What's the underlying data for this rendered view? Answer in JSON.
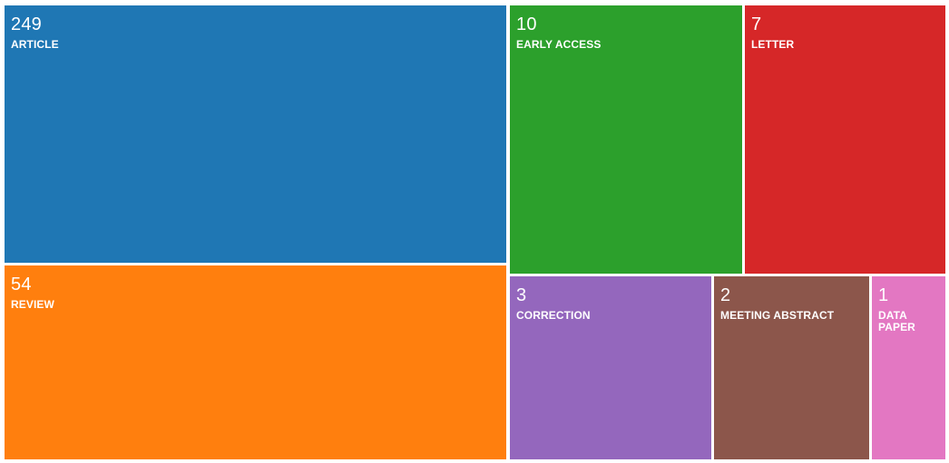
{
  "chart_data": {
    "type": "treemap",
    "items": [
      {
        "label": "ARTICLE",
        "value": 249,
        "color": "#1f77b4"
      },
      {
        "label": "REVIEW",
        "value": 54,
        "color": "#ff7f0e"
      },
      {
        "label": "EARLY ACCESS",
        "value": 10,
        "color": "#2ca02c"
      },
      {
        "label": "LETTER",
        "value": 7,
        "color": "#d62728"
      },
      {
        "label": "CORRECTION",
        "value": 3,
        "color": "#9467bd"
      },
      {
        "label": "MEETING ABSTRACT",
        "value": 2,
        "color": "#8c564b"
      },
      {
        "label": "DATA PAPER",
        "value": 1,
        "color": "#e377c2"
      }
    ]
  }
}
